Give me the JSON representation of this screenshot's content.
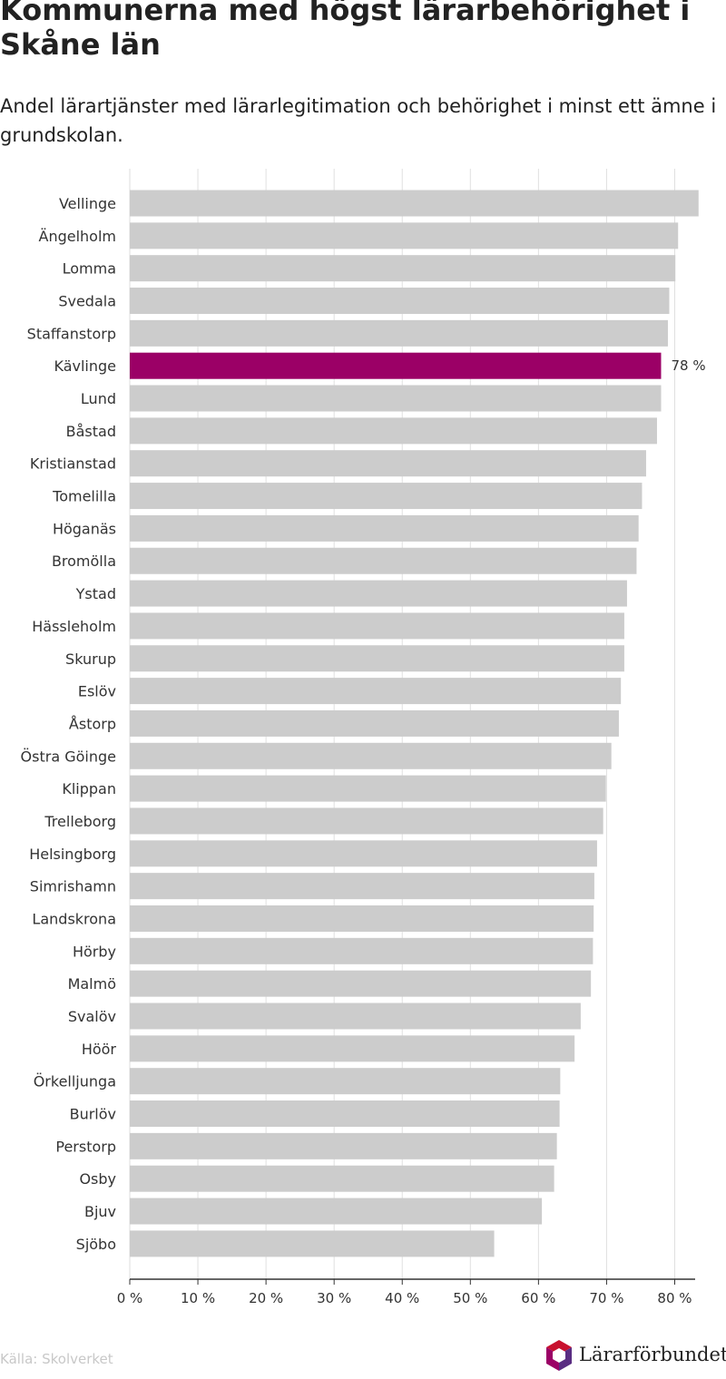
{
  "title": "Kommunerna med högst lärarbehörighet i Skåne län",
  "subtitle": "Andel lärartjänster med lärarlegitimation och behörighet i minst ett ämne i grundskolan.",
  "source": "Källa: Skolverket",
  "logo": {
    "text": "Lärarförbundet",
    "icon": "lararforbundet-logo-hexagon"
  },
  "colors": {
    "bar": "#cccccc",
    "highlight": "#9b0066",
    "grid": "#e0e0e0",
    "axis": "#333333",
    "logo_colors": [
      "#c8102e",
      "#9b0066",
      "#5a2d82"
    ]
  },
  "chart_data": {
    "type": "bar",
    "orientation": "horizontal",
    "categories": [
      "Vellinge",
      "Ängelholm",
      "Lomma",
      "Svedala",
      "Staffanstorp",
      "Kävlinge",
      "Lund",
      "Båstad",
      "Kristianstad",
      "Tomelilla",
      "Höganäs",
      "Bromölla",
      "Ystad",
      "Hässleholm",
      "Skurup",
      "Eslöv",
      "Åstorp",
      "Östra Göinge",
      "Klippan",
      "Trelleborg",
      "Helsingborg",
      "Simrishamn",
      "Landskrona",
      "Hörby",
      "Malmö",
      "Svalöv",
      "Höör",
      "Örkelljunga",
      "Burlöv",
      "Perstorp",
      "Osby",
      "Bjuv",
      "Sjöbo"
    ],
    "values": [
      83.5,
      80.5,
      80.1,
      79.2,
      79.0,
      78.0,
      78.0,
      77.4,
      75.8,
      75.2,
      74.7,
      74.4,
      73.0,
      72.6,
      72.6,
      72.1,
      71.8,
      70.7,
      69.9,
      69.5,
      68.6,
      68.2,
      68.1,
      68.0,
      67.7,
      66.2,
      65.3,
      63.2,
      63.1,
      62.7,
      62.3,
      60.5,
      53.5
    ],
    "highlight": {
      "category": "Kävlinge",
      "label": "78 %"
    },
    "xlim": [
      0,
      83
    ],
    "xticks": [
      0,
      10,
      20,
      30,
      40,
      50,
      60,
      70,
      80
    ],
    "xtick_labels": [
      "0 %",
      "10 %",
      "20 %",
      "30 %",
      "40 %",
      "50 %",
      "60 %",
      "70 %",
      "80 %"
    ],
    "grid": true,
    "legend": "none",
    "xlabel": "",
    "ylabel": ""
  }
}
